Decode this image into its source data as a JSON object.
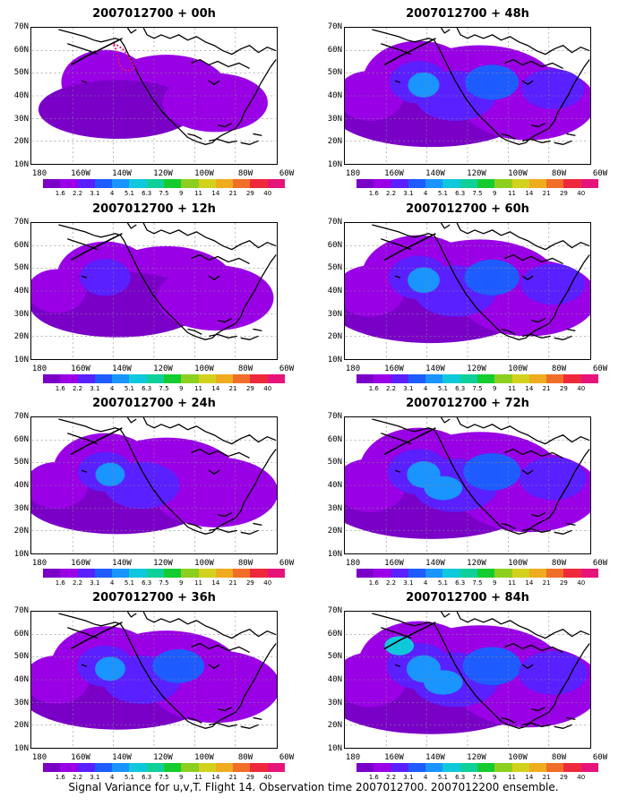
{
  "panels": [
    {
      "title": "2007012700 + 00h",
      "level": 0.3
    },
    {
      "title": "2007012700 + 48h",
      "level": 0.8
    },
    {
      "title": "2007012700 + 12h",
      "level": 0.5
    },
    {
      "title": "2007012700 + 60h",
      "level": 0.85
    },
    {
      "title": "2007012700 + 24h",
      "level": 0.65
    },
    {
      "title": "2007012700 + 72h",
      "level": 0.95
    },
    {
      "title": "2007012700 + 36h",
      "level": 0.72
    },
    {
      "title": "2007012700 + 84h",
      "level": 1.0
    }
  ],
  "lat_labels": [
    "70N",
    "60N",
    "50N",
    "40N",
    "30N",
    "20N",
    "10N"
  ],
  "lon_labels": [
    "180",
    "160W",
    "140W",
    "120W",
    "100W",
    "80W",
    "60W"
  ],
  "colorbar": {
    "labels": [
      "1.6",
      "2.2",
      "3.1",
      "4",
      "5.1",
      "6.3",
      "7.5",
      "9",
      "11",
      "14",
      "21",
      "29",
      "40"
    ],
    "colors": [
      "#7a00c8",
      "#9a00e6",
      "#5a20ff",
      "#1e5cff",
      "#1a94ff",
      "#10c8dc",
      "#10d09a",
      "#14cc30",
      "#8ccf1e",
      "#d2d21e",
      "#eeac1e",
      "#f06e28",
      "#f0283c",
      "#e6147a"
    ]
  },
  "caption": "Signal Variance for u,v,T. Flight 14. Observation time 2007012700. 2007012200 ensemble."
}
